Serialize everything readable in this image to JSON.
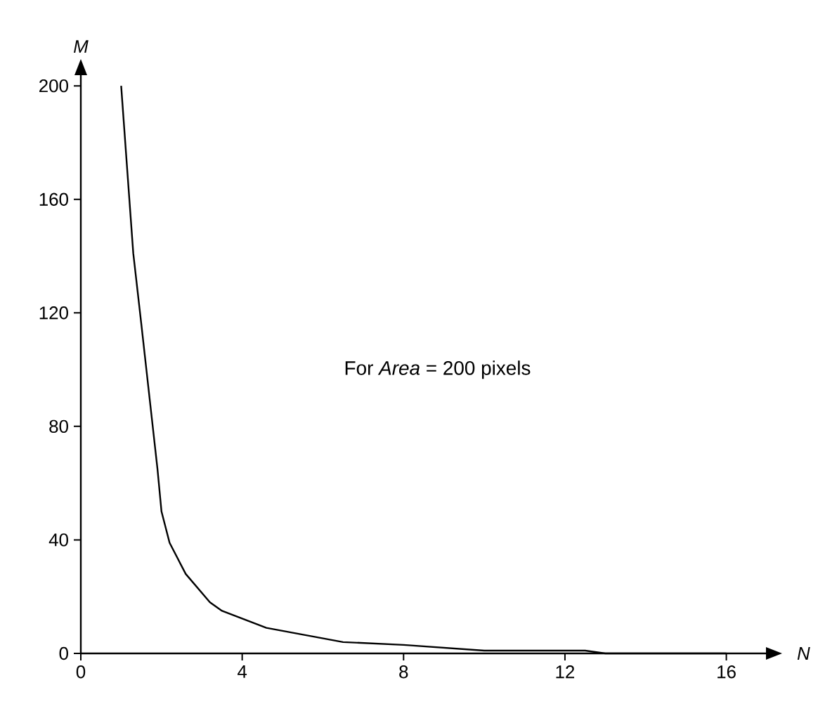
{
  "chart_data": {
    "type": "line",
    "xlabel": "N",
    "ylabel": "M",
    "annotations": [
      "For *Area* = 200 pixels"
    ],
    "x": [
      1,
      1.3,
      1.5,
      1.9,
      2,
      2.2,
      2.6,
      3.2,
      3.5,
      4.6,
      6.5,
      8,
      10,
      12.5,
      13,
      16
    ],
    "series": [
      {
        "color": "#000000",
        "values": [
          200,
          141,
          116,
          65,
          50,
          39,
          28,
          18,
          15,
          9,
          4,
          3,
          1,
          1,
          0,
          0
        ]
      }
    ],
    "xlim": [
      0,
      17
    ],
    "ylim": [
      0,
      204
    ],
    "xticks": [
      0,
      4,
      8,
      12,
      16
    ],
    "yticks": [
      0,
      40,
      80,
      120,
      160,
      200
    ],
    "grid": false,
    "marker": "none",
    "line_style": "solid"
  }
}
